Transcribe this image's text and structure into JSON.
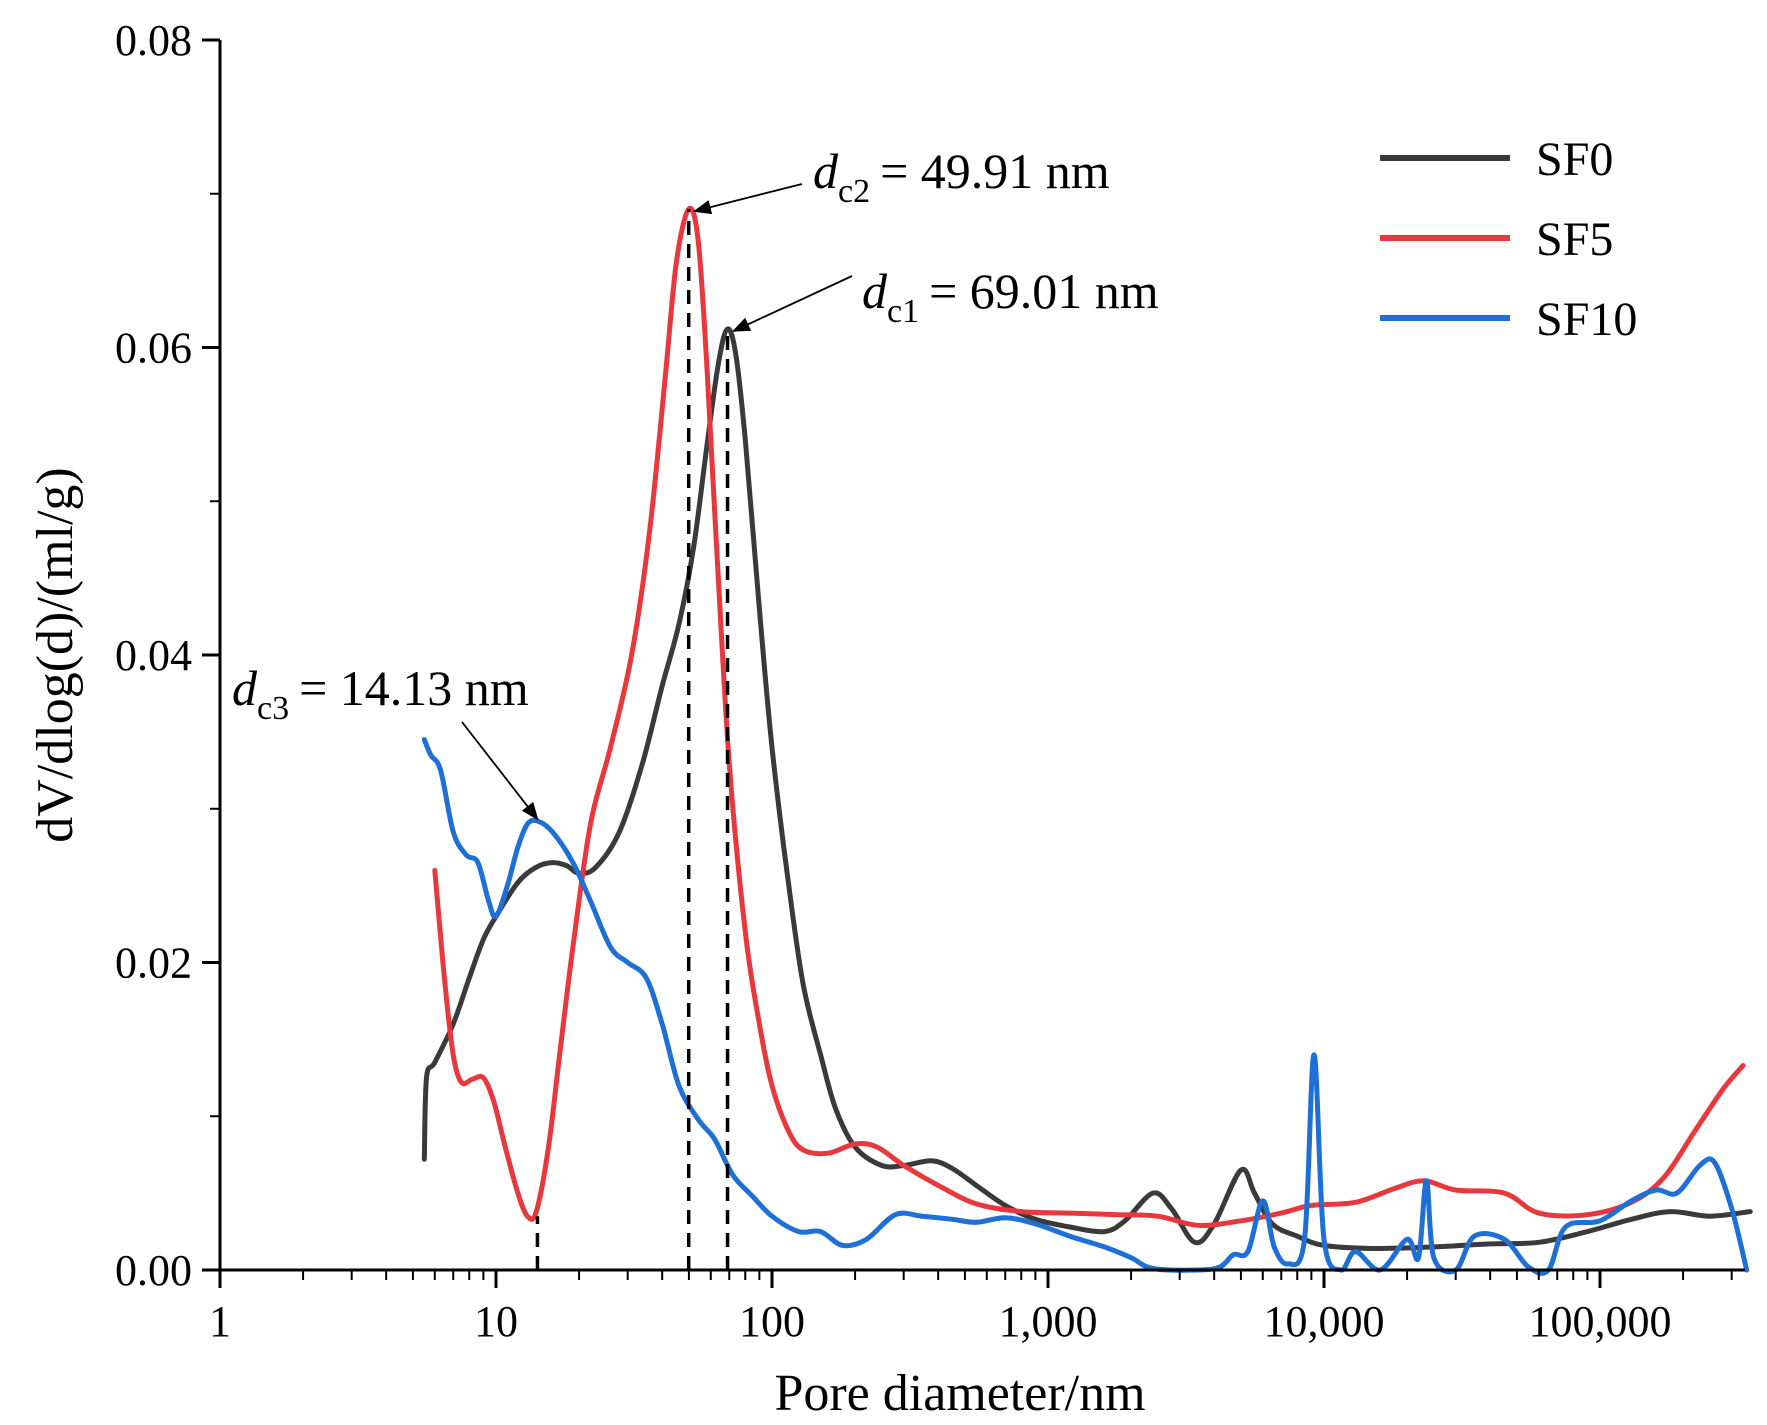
{
  "chart_data": {
    "type": "line",
    "xlabel": "Pore diameter/nm",
    "ylabel": "dV/dlog(d)/(ml/g)",
    "x_scale": "log",
    "xlim": [
      1,
      400000
    ],
    "ylim": [
      0,
      0.08
    ],
    "grid": false,
    "legend_position": "top-right",
    "x_ticks": [
      {
        "value": 1,
        "label": "1"
      },
      {
        "value": 10,
        "label": "10"
      },
      {
        "value": 100,
        "label": "100"
      },
      {
        "value": 1000,
        "label": "1,000"
      },
      {
        "value": 10000,
        "label": "10,000"
      },
      {
        "value": 100000,
        "label": "100,000"
      }
    ],
    "y_ticks": [
      {
        "value": 0,
        "label": "0.00"
      },
      {
        "value": 0.02,
        "label": "0.02"
      },
      {
        "value": 0.04,
        "label": "0.04"
      },
      {
        "value": 0.06,
        "label": "0.06"
      },
      {
        "value": 0.08,
        "label": "0.08"
      }
    ],
    "series": [
      {
        "name": "SF0",
        "color": "#3a3a3a",
        "points": [
          [
            5.5,
            0.0072
          ],
          [
            5.6,
            0.0125
          ],
          [
            6.0,
            0.0135
          ],
          [
            7.0,
            0.016
          ],
          [
            8.0,
            0.019
          ],
          [
            9.0,
            0.0215
          ],
          [
            10.0,
            0.023
          ],
          [
            12.0,
            0.0252
          ],
          [
            14.0,
            0.0262
          ],
          [
            16.0,
            0.0265
          ],
          [
            18.0,
            0.0263
          ],
          [
            20.0,
            0.0258
          ],
          [
            23.0,
            0.0262
          ],
          [
            28.0,
            0.0285
          ],
          [
            34.0,
            0.033
          ],
          [
            40.0,
            0.038
          ],
          [
            46.0,
            0.042
          ],
          [
            52.0,
            0.047
          ],
          [
            58.0,
            0.0535
          ],
          [
            64.0,
            0.059
          ],
          [
            69.01,
            0.0612
          ],
          [
            74.0,
            0.0595
          ],
          [
            80.0,
            0.054
          ],
          [
            90.0,
            0.043
          ],
          [
            100.0,
            0.034
          ],
          [
            115.0,
            0.025
          ],
          [
            130.0,
            0.0185
          ],
          [
            150.0,
            0.014
          ],
          [
            170.0,
            0.0105
          ],
          [
            200.0,
            0.008
          ],
          [
            250.0,
            0.0068
          ],
          [
            300.0,
            0.0068
          ],
          [
            380.0,
            0.0071
          ],
          [
            450.0,
            0.0066
          ],
          [
            550.0,
            0.0055
          ],
          [
            700.0,
            0.0042
          ],
          [
            900.0,
            0.0033
          ],
          [
            1200.0,
            0.0028
          ],
          [
            1600.0,
            0.0025
          ],
          [
            1900.0,
            0.0032
          ],
          [
            2400.0,
            0.005
          ],
          [
            2800.0,
            0.004
          ],
          [
            3400.0,
            0.0018
          ],
          [
            4000.0,
            0.003
          ],
          [
            5000.0,
            0.0065
          ],
          [
            5600.0,
            0.005
          ],
          [
            6500.0,
            0.003
          ],
          [
            8000.0,
            0.0022
          ],
          [
            10000.0,
            0.0016
          ],
          [
            15000.0,
            0.0014
          ],
          [
            25000.0,
            0.0015
          ],
          [
            40000.0,
            0.0017
          ],
          [
            60000.0,
            0.0018
          ],
          [
            90000.0,
            0.0025
          ],
          [
            130000.0,
            0.0033
          ],
          [
            180000.0,
            0.0038
          ],
          [
            250000.0,
            0.0035
          ],
          [
            350000.0,
            0.0038
          ]
        ]
      },
      {
        "name": "SF5",
        "color": "#e8383d",
        "points": [
          [
            6.0,
            0.026
          ],
          [
            6.5,
            0.019
          ],
          [
            7.0,
            0.014
          ],
          [
            7.5,
            0.0122
          ],
          [
            8.2,
            0.0124
          ],
          [
            9.0,
            0.0125
          ],
          [
            9.8,
            0.011
          ],
          [
            10.8,
            0.008
          ],
          [
            12.0,
            0.005
          ],
          [
            13.0,
            0.0035
          ],
          [
            14.0,
            0.0038
          ],
          [
            15.5,
            0.008
          ],
          [
            17.0,
            0.014
          ],
          [
            19.0,
            0.021
          ],
          [
            22.0,
            0.029
          ],
          [
            26.0,
            0.034
          ],
          [
            31.0,
            0.04
          ],
          [
            36.0,
            0.048
          ],
          [
            41.0,
            0.058
          ],
          [
            45.0,
            0.0655
          ],
          [
            49.91,
            0.069
          ],
          [
            54.0,
            0.067
          ],
          [
            58.0,
            0.059
          ],
          [
            63.0,
            0.047
          ],
          [
            70.0,
            0.033
          ],
          [
            80.0,
            0.022
          ],
          [
            90.0,
            0.016
          ],
          [
            100.0,
            0.012
          ],
          [
            115.0,
            0.009
          ],
          [
            130.0,
            0.0078
          ],
          [
            160.0,
            0.0076
          ],
          [
            200.0,
            0.0082
          ],
          [
            240.0,
            0.008
          ],
          [
            300.0,
            0.0068
          ],
          [
            400.0,
            0.0055
          ],
          [
            550.0,
            0.0043
          ],
          [
            800.0,
            0.0038
          ],
          [
            1200.0,
            0.0037
          ],
          [
            1800.0,
            0.0036
          ],
          [
            2500.0,
            0.0035
          ],
          [
            3500.0,
            0.0029
          ],
          [
            5000.0,
            0.0032
          ],
          [
            7000.0,
            0.0037
          ],
          [
            9000.0,
            0.0042
          ],
          [
            13000.0,
            0.0044
          ],
          [
            18000.0,
            0.0053
          ],
          [
            23000.0,
            0.0058
          ],
          [
            30000.0,
            0.0052
          ],
          [
            45000.0,
            0.005
          ],
          [
            60000.0,
            0.0037
          ],
          [
            90000.0,
            0.0036
          ],
          [
            130000.0,
            0.0044
          ],
          [
            170000.0,
            0.006
          ],
          [
            220000.0,
            0.009
          ],
          [
            280000.0,
            0.0118
          ],
          [
            330000.0,
            0.0133
          ]
        ]
      },
      {
        "name": "SF10",
        "color": "#1e6fd6",
        "points": [
          [
            5.5,
            0.0345
          ],
          [
            5.8,
            0.0335
          ],
          [
            6.3,
            0.0325
          ],
          [
            7.0,
            0.0285
          ],
          [
            7.8,
            0.027
          ],
          [
            8.6,
            0.0265
          ],
          [
            9.4,
            0.024
          ],
          [
            10.0,
            0.023
          ],
          [
            11.0,
            0.025
          ],
          [
            12.0,
            0.0275
          ],
          [
            13.0,
            0.029
          ],
          [
            14.13,
            0.0292
          ],
          [
            16.0,
            0.0285
          ],
          [
            19.0,
            0.0265
          ],
          [
            22.0,
            0.024
          ],
          [
            26.0,
            0.021
          ],
          [
            30.0,
            0.02
          ],
          [
            35.0,
            0.019
          ],
          [
            40.0,
            0.016
          ],
          [
            46.0,
            0.012
          ],
          [
            54.0,
            0.0098
          ],
          [
            62.0,
            0.0085
          ],
          [
            72.0,
            0.0062
          ],
          [
            85.0,
            0.0048
          ],
          [
            100.0,
            0.0035
          ],
          [
            125.0,
            0.0025
          ],
          [
            150.0,
            0.0025
          ],
          [
            180.0,
            0.0016
          ],
          [
            220.0,
            0.002
          ],
          [
            280.0,
            0.0036
          ],
          [
            350.0,
            0.0035
          ],
          [
            450.0,
            0.0033
          ],
          [
            550.0,
            0.0031
          ],
          [
            700.0,
            0.0034
          ],
          [
            900.0,
            0.003
          ],
          [
            1200.0,
            0.0022
          ],
          [
            1600.0,
            0.0015
          ],
          [
            2000.0,
            0.0008
          ],
          [
            2400.0,
            0.0001
          ],
          [
            3500.0,
            0.0
          ],
          [
            4200.0,
            0.0002
          ],
          [
            4700.0,
            0.001
          ],
          [
            5300.0,
            0.0012
          ],
          [
            6000.0,
            0.0045
          ],
          [
            6600.0,
            0.0015
          ],
          [
            7400.0,
            0.0004
          ],
          [
            8500.0,
            0.002
          ],
          [
            9200.0,
            0.014
          ],
          [
            10000.0,
            0.002
          ],
          [
            11500.0,
            0.0
          ],
          [
            13000.0,
            0.0012
          ],
          [
            16000.0,
            0.0
          ],
          [
            20000.0,
            0.002
          ],
          [
            22000.0,
            0.0008
          ],
          [
            23500.0,
            0.0058
          ],
          [
            25000.0,
            0.0008
          ],
          [
            30000.0,
            0.0
          ],
          [
            35000.0,
            0.0022
          ],
          [
            45000.0,
            0.002
          ],
          [
            55000.0,
            0.0002
          ],
          [
            65000.0,
            0.0
          ],
          [
            75000.0,
            0.0028
          ],
          [
            100000.0,
            0.0032
          ],
          [
            130000.0,
            0.0045
          ],
          [
            160000.0,
            0.0052
          ],
          [
            190000.0,
            0.005
          ],
          [
            230000.0,
            0.0068
          ],
          [
            260000.0,
            0.007
          ],
          [
            300000.0,
            0.004
          ],
          [
            340000.0,
            0.0
          ]
        ]
      }
    ],
    "annotations": [
      {
        "var": "d",
        "sub": "c1",
        "text": "= 69.01 nm",
        "x": 69.01,
        "y": 0.0612
      },
      {
        "var": "d",
        "sub": "c2",
        "text": "= 49.91 nm",
        "x": 49.91,
        "y": 0.069
      },
      {
        "var": "d",
        "sub": "c3",
        "text": "= 14.13 nm",
        "x": 14.13,
        "y": 0.0292
      }
    ],
    "reference_lines": [
      {
        "x": 14.13,
        "y": 0.0035
      },
      {
        "x": 49.91,
        "y": 0.069
      },
      {
        "x": 69.01,
        "y": 0.0612
      }
    ]
  }
}
